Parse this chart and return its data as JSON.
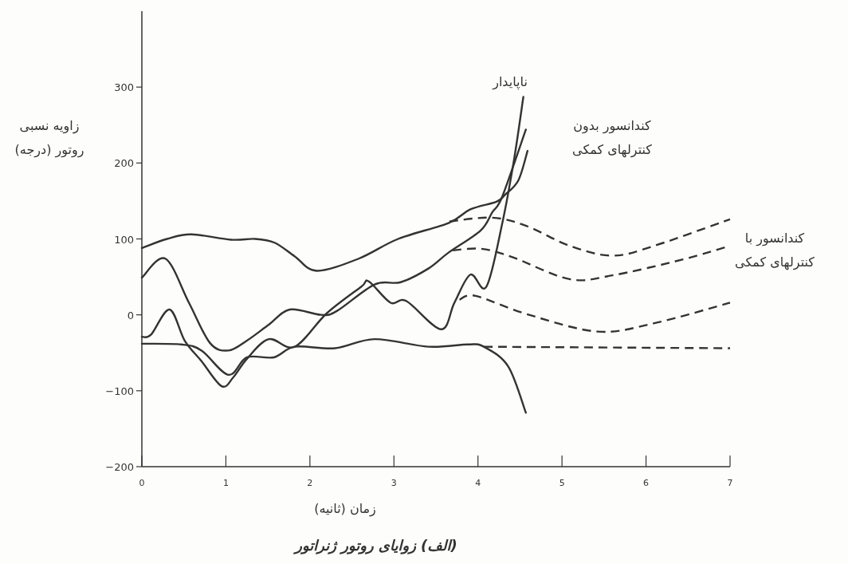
{
  "chart_data": {
    "type": "line",
    "title": "(الف) زوایای روتور ژنراتور",
    "xlabel": "زمان (ثانیه)",
    "ylabel": "زاویه نسبی\nروتور (درجه)",
    "xlim": [
      0,
      7
    ],
    "xticks": [
      0,
      1,
      2,
      3,
      4,
      5,
      6,
      7
    ],
    "ylim": [
      -200,
      400
    ],
    "yticks": [
      -200,
      -100,
      0,
      100,
      200,
      300
    ],
    "annotations": [
      "ناپایدار",
      "کندانسور بدون\nکنترلهای کمکی",
      "کندانسور با\nکنترلهای کمکی"
    ],
    "series": [
      {
        "color": "#333333",
        "line_style": "solid",
        "x": [
          0,
          0.3,
          0.59,
          1.06,
          1.35,
          1.58,
          1.82,
          2.08,
          2.58,
          3.05,
          3.65,
          3.91,
          4.22,
          4.32,
          4.48,
          4.59
        ],
        "values": [
          88,
          100,
          106,
          99,
          100,
          95,
          77,
          58,
          74,
          100,
          121,
          139,
          149,
          158,
          177,
          216
        ]
      },
      {
        "color": "#333333",
        "line_style": "dashed",
        "x": [
          3.66,
          4.17,
          4.58,
          5.09,
          5.6,
          6.1,
          7
        ],
        "values": [
          123,
          128,
          117,
          91,
          78,
          91,
          126
        ]
      },
      {
        "color": "#333333",
        "line_style": "solid",
        "x": [
          0,
          0.28,
          0.56,
          0.81,
          1.03,
          1.25,
          1.51,
          1.76,
          2.13,
          2.32,
          2.77,
          3.08,
          3.41,
          3.65,
          4.03,
          4.17,
          4.29,
          4.57
        ],
        "values": [
          49,
          74,
          16,
          -37,
          -47,
          -34,
          -13,
          7,
          0,
          5,
          40,
          43,
          61,
          82,
          111,
          135,
          156,
          244
        ]
      },
      {
        "color": "#333333",
        "line_style": "dashed",
        "x": [
          3.7,
          4.04,
          4.41,
          5.09,
          5.6,
          6.44,
          7
        ],
        "values": [
          85,
          87,
          76,
          47,
          52,
          73,
          91
        ]
      },
      {
        "color": "#333333",
        "line_style": "solid",
        "x": [
          0,
          0.11,
          0.33,
          0.51,
          0.71,
          0.95,
          1.09,
          1.25,
          1.51,
          1.82,
          2.2,
          2.61,
          2.7,
          2.96,
          3.15,
          3.56,
          3.72,
          3.91,
          4.1,
          4.29,
          4.43,
          4.54
        ],
        "values": [
          -29,
          -26,
          7,
          -34,
          -61,
          -94,
          -82,
          -58,
          -32,
          -42,
          2,
          37,
          44,
          16,
          18,
          -19,
          16,
          53,
          37,
          121,
          205,
          287
        ]
      },
      {
        "color": "#333333",
        "line_style": "dashed",
        "x": [
          3.78,
          3.97,
          4.58,
          5.42,
          6.1,
          7
        ],
        "values": [
          20,
          25,
          1,
          -22,
          -11,
          16
        ]
      },
      {
        "color": "#333333",
        "line_style": "solid",
        "x": [
          0,
          0.47,
          0.71,
          1.03,
          1.25,
          1.57,
          1.82,
          2.3,
          2.77,
          3.41,
          3.88,
          4.07,
          4.36,
          4.57
        ],
        "values": [
          -38,
          -39,
          -47,
          -79,
          -56,
          -56,
          -42,
          -44,
          -32,
          -42,
          -39,
          -42,
          -68,
          -129
        ]
      },
      {
        "color": "#333333",
        "line_style": "dashed",
        "x": [
          4.07,
          7
        ],
        "values": [
          -42,
          -44
        ]
      }
    ]
  }
}
